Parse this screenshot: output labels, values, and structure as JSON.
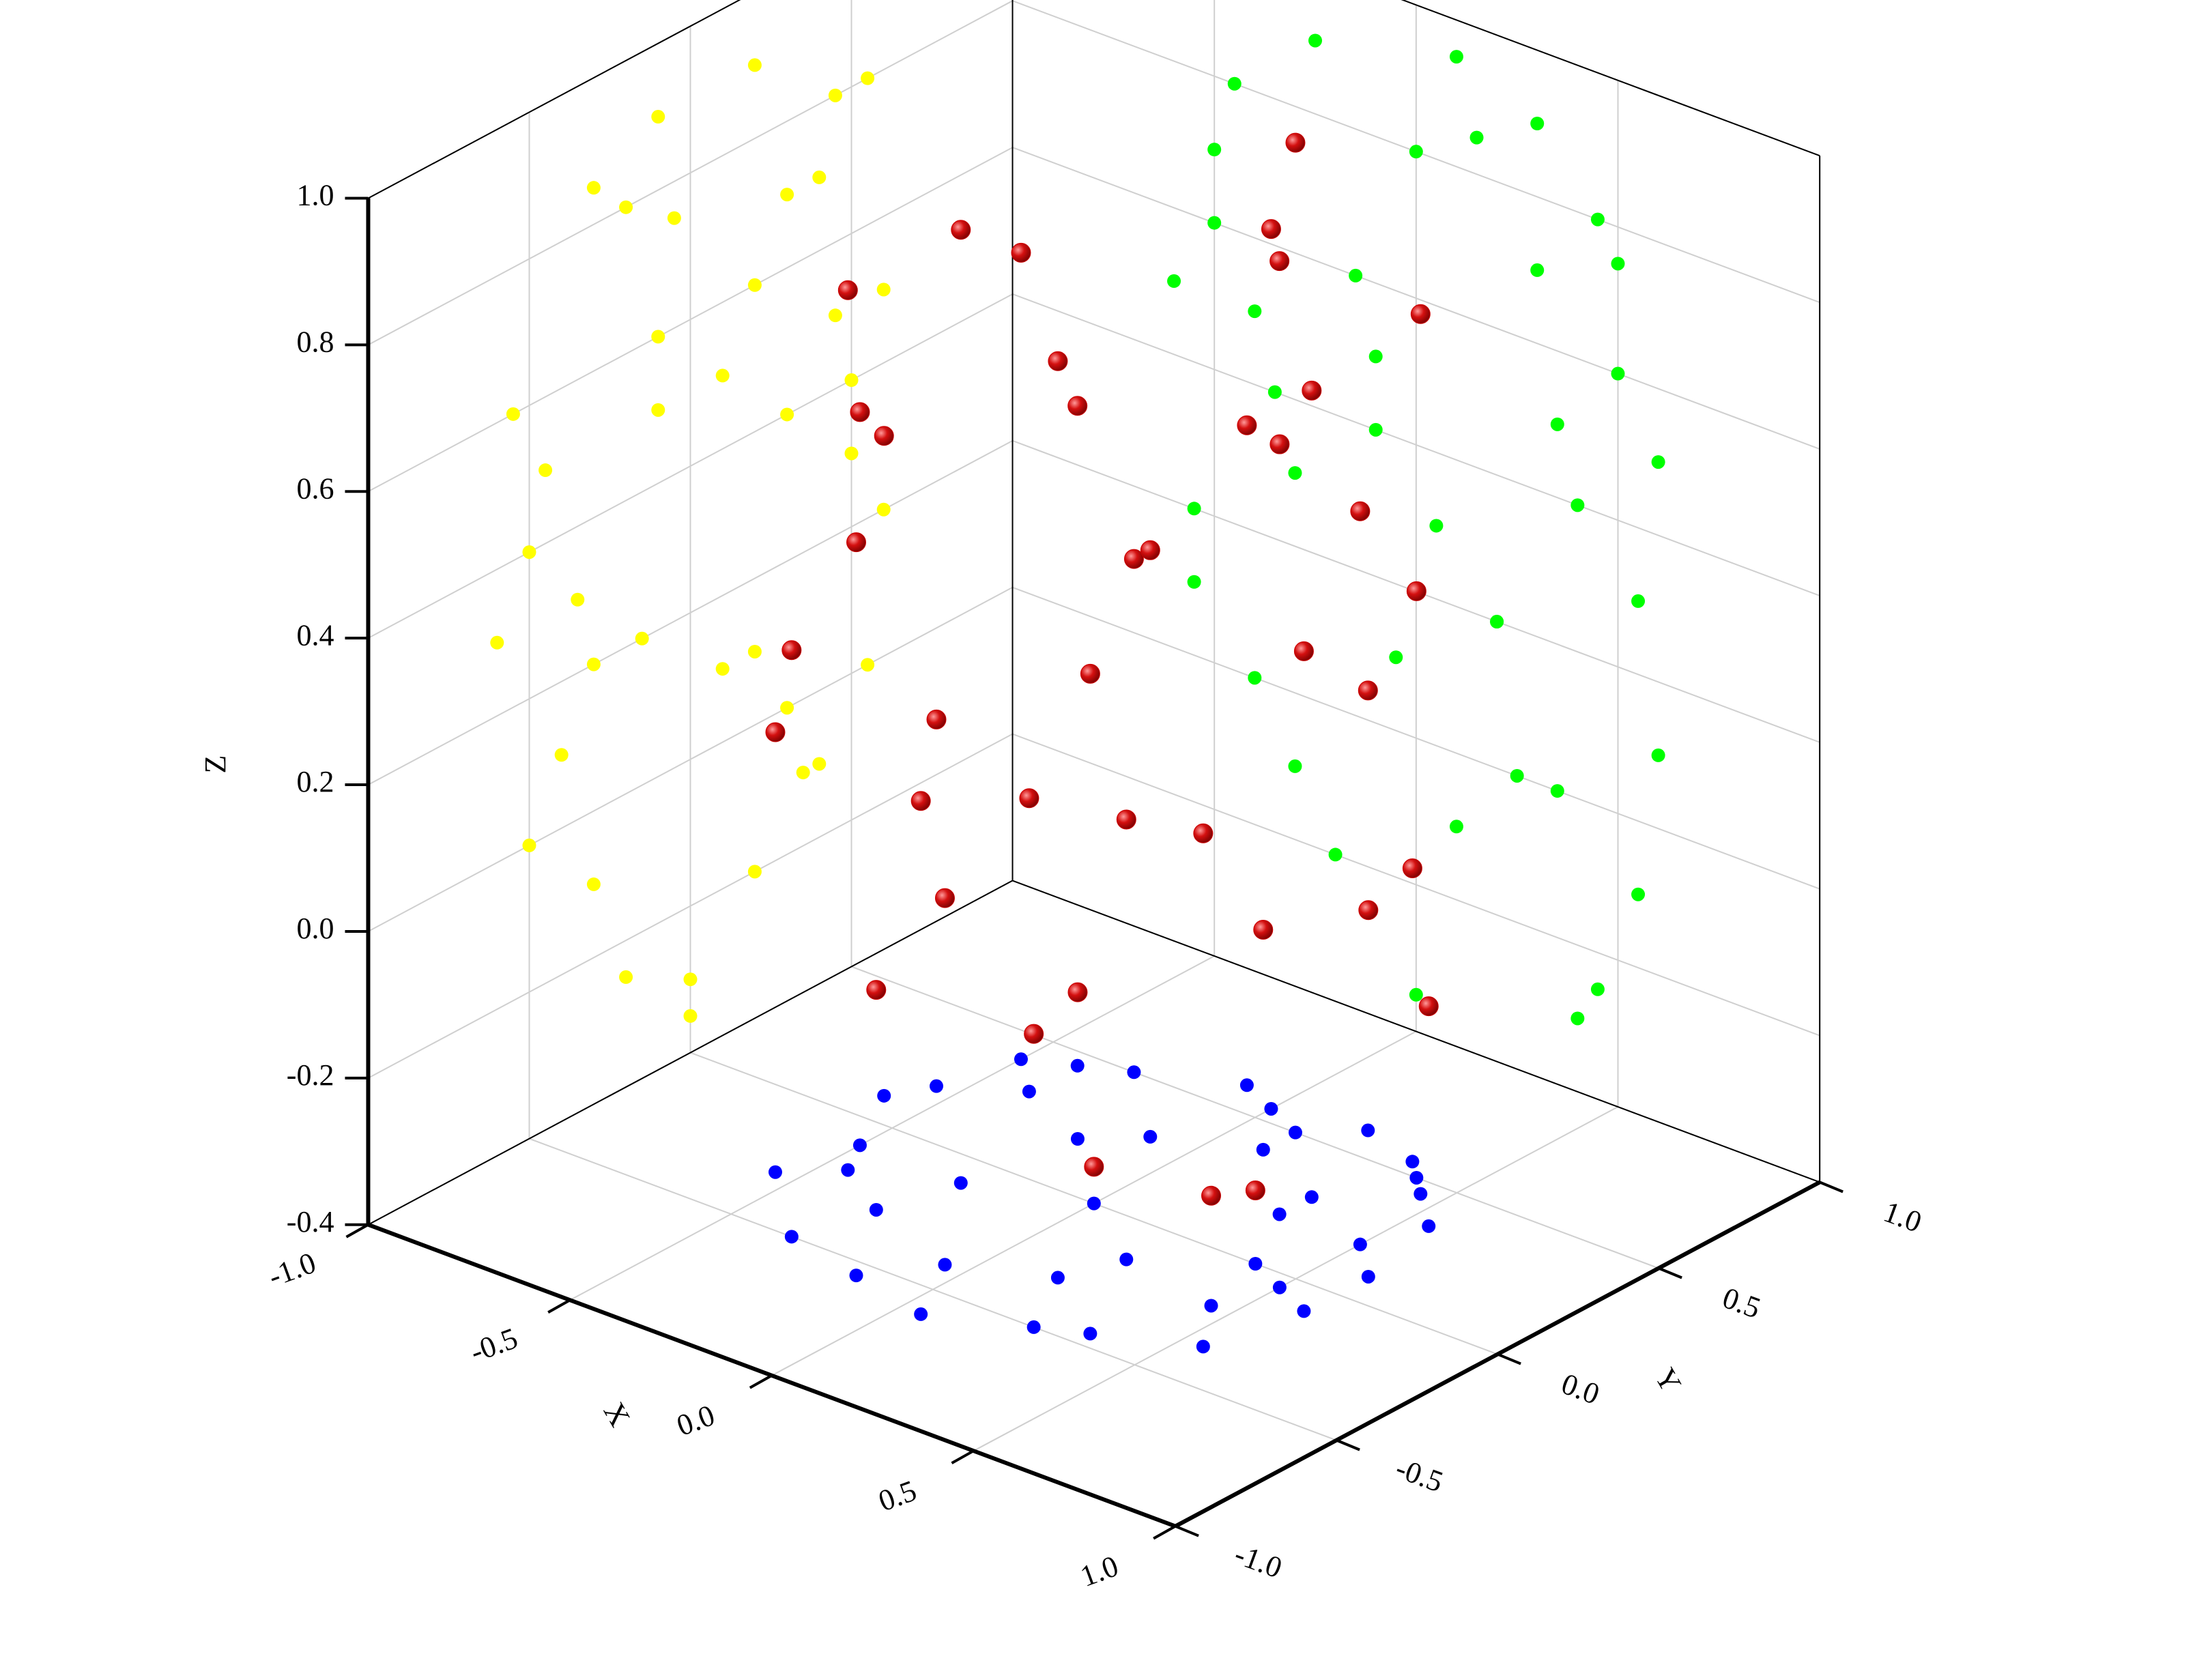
{
  "chart_data": {
    "type": "scatter3d",
    "xlabel": "X",
    "ylabel": "Y",
    "zlabel": "Z",
    "xlim": [
      -1,
      1
    ],
    "ylim": [
      -1,
      1
    ],
    "zlim": [
      -0.4,
      1
    ],
    "xticks": [
      {
        "value": -1,
        "label": "-1.0"
      },
      -0.5,
      {
        "value": 0,
        "label": "0.0"
      },
      0.5,
      {
        "value": 1,
        "label": "1.0"
      }
    ],
    "yticks": [
      {
        "value": -1,
        "label": "-1.0"
      },
      -0.5,
      {
        "value": 0,
        "label": "0.0"
      },
      0.5,
      {
        "value": 1,
        "label": "1.0"
      }
    ],
    "zticks": [
      -0.4,
      -0.2,
      {
        "value": 0,
        "label": "0.0"
      },
      0.2,
      0.4,
      0.6,
      0.8,
      {
        "value": 1,
        "label": "1.0"
      }
    ],
    "grid": true,
    "series": [
      {
        "color": "#cc0000",
        "x": [
          -0.6,
          -0.55,
          -0.5,
          -0.45,
          -0.4,
          -0.35,
          -0.3,
          -0.25,
          -0.2,
          -0.15,
          -0.1,
          -0.05,
          0.0,
          0.05,
          0.1,
          0.15,
          0.2,
          0.25,
          0.3,
          0.35,
          0.4,
          0.45,
          0.5,
          0.55,
          0.6,
          0.6,
          0.55,
          0.5,
          0.4,
          0.3,
          -0.55,
          -0.5,
          -0.4,
          -0.3,
          0.0,
          0.1,
          -0.1,
          0.2,
          0.45,
          0.35
        ],
        "y": [
          0.1,
          -0.3,
          0.4,
          -0.2,
          0.3,
          -0.5,
          0.5,
          -0.1,
          0.2,
          -0.55,
          0.6,
          -0.4,
          0.55,
          -0.6,
          0.4,
          -0.3,
          0.6,
          -0.5,
          0.3,
          -0.45,
          0.5,
          -0.2,
          0.2,
          -0.35,
          0.1,
          -0.1,
          0.35,
          -0.05,
          0.0,
          0.2,
          0.2,
          -0.1,
          0.45,
          -0.3,
          0.0,
          0.5,
          0.3,
          -0.15,
          0.45,
          0.55
        ],
        "z": [
          0.5,
          0.2,
          0.7,
          0.8,
          0.0,
          0.4,
          0.3,
          0.9,
          -0.2,
          0.6,
          0.5,
          0.1,
          0.8,
          0.3,
          -0.1,
          0.85,
          0.2,
          0.0,
          0.7,
          0.5,
          0.4,
          -0.25,
          0.6,
          0.3,
          0.1,
          0.5,
          -0.1,
          0.75,
          -0.3,
          0.9,
          0.1,
          0.6,
          0.5,
          -0.1,
          -0.35,
          0.95,
          0.4,
          0.2,
          0.8,
          0.0
        ]
      }
    ],
    "projections": [
      {
        "plane": "x",
        "color": "#ffff00"
      },
      {
        "plane": "y",
        "color": "#00ff00"
      },
      {
        "plane": "z",
        "color": "#0000ff"
      }
    ]
  }
}
